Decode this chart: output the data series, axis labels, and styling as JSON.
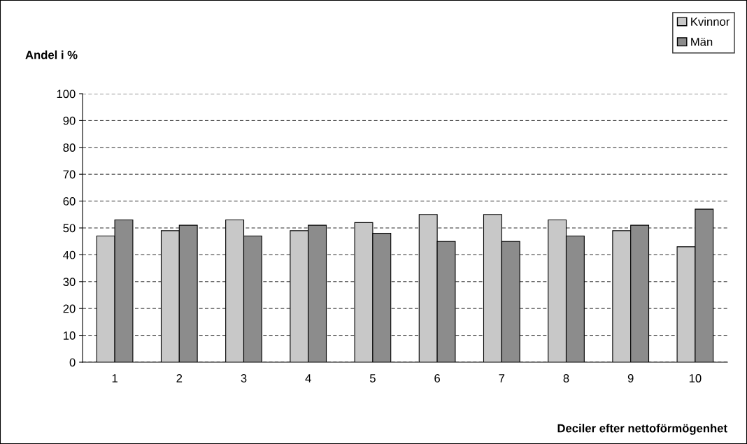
{
  "chart_data": {
    "type": "bar",
    "xlabel": "Deciler efter nettoförmögenhet",
    "ylabel": "Andel i %",
    "categories": [
      "1",
      "2",
      "3",
      "4",
      "5",
      "6",
      "7",
      "8",
      "9",
      "10"
    ],
    "series": [
      {
        "name": "Kvinnor",
        "color": "#c8c8c8",
        "values": [
          47,
          49,
          53,
          49,
          52,
          55,
          55,
          53,
          49,
          43
        ]
      },
      {
        "name": "Män",
        "color": "#8c8c8c",
        "values": [
          53,
          51,
          47,
          51,
          48,
          45,
          45,
          47,
          51,
          57
        ]
      }
    ],
    "ylim": [
      0,
      100
    ],
    "yticks": [
      0,
      10,
      20,
      30,
      40,
      50,
      60,
      70,
      80,
      90,
      100
    ],
    "grid": "y",
    "legend": "top right"
  }
}
